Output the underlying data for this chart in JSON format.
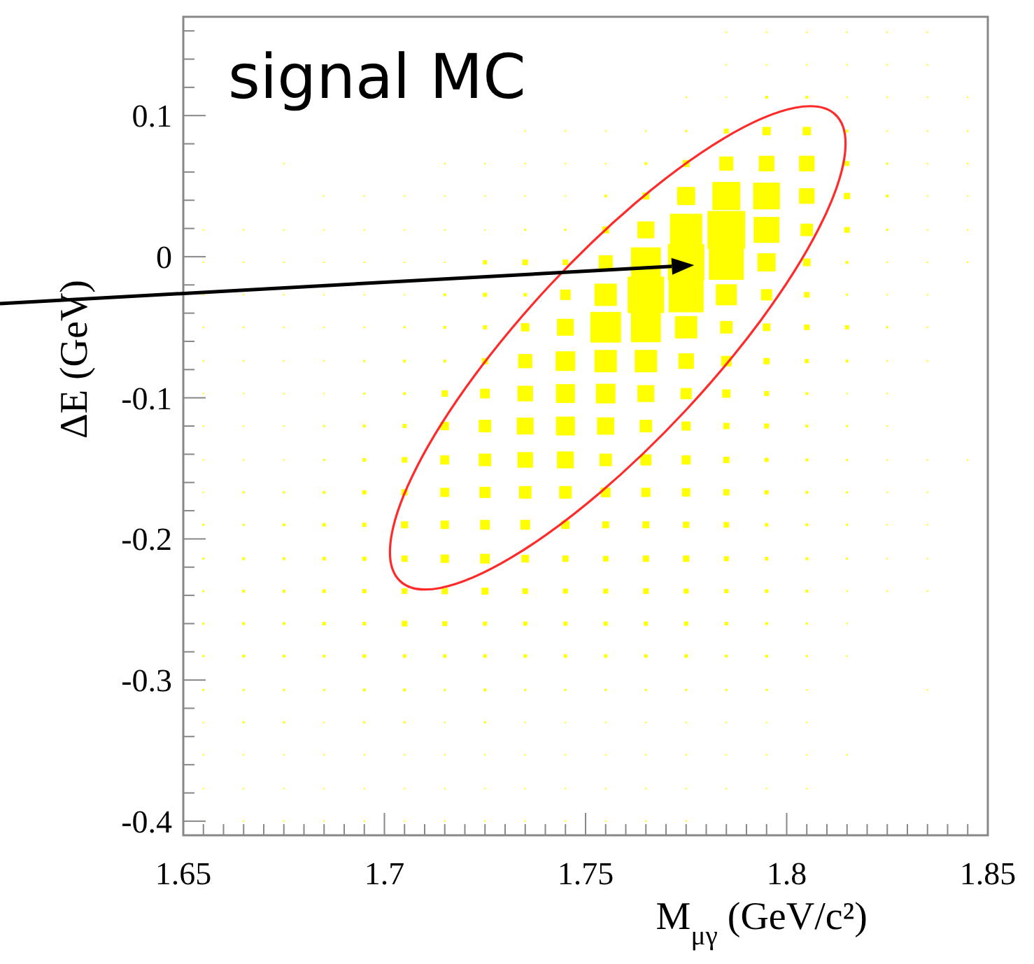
{
  "chart_data": {
    "type": "bubble",
    "marker": "square",
    "xlabel": "M$_{μγ}$ (GeV/c²)",
    "ylabel": "ΔE (GeV)",
    "annotations": [
      "signal MC"
    ],
    "xlim": [
      1.65,
      1.85
    ],
    "ylim": [
      -0.41,
      0.17
    ],
    "xticks": [
      1.65,
      {
        "value": 1.655,
        "label": null
      },
      {
        "value": 1.66,
        "label": null
      },
      {
        "value": 1.665,
        "label": null
      },
      {
        "value": 1.67,
        "label": null
      },
      {
        "value": 1.675,
        "label": null
      },
      {
        "value": 1.68,
        "label": null
      },
      {
        "value": 1.685,
        "label": null
      },
      {
        "value": 1.69,
        "label": null
      },
      {
        "value": 1.695,
        "label": null
      },
      1.7,
      {
        "value": 1.705,
        "label": null
      },
      {
        "value": 1.71,
        "label": null
      },
      {
        "value": 1.715,
        "label": null
      },
      {
        "value": 1.72,
        "label": null
      },
      {
        "value": 1.725,
        "label": null
      },
      {
        "value": 1.73,
        "label": null
      },
      {
        "value": 1.735,
        "label": null
      },
      {
        "value": 1.74,
        "label": null
      },
      {
        "value": 1.745,
        "label": null
      },
      1.75,
      {
        "value": 1.755,
        "label": null
      },
      {
        "value": 1.76,
        "label": null
      },
      {
        "value": 1.765,
        "label": null
      },
      {
        "value": 1.77,
        "label": null
      },
      {
        "value": 1.775,
        "label": null
      },
      {
        "value": 1.78,
        "label": null
      },
      {
        "value": 1.785,
        "label": null
      },
      {
        "value": 1.79,
        "label": null
      },
      {
        "value": 1.795,
        "label": null
      },
      1.8,
      {
        "value": 1.805,
        "label": null
      },
      {
        "value": 1.81,
        "label": null
      },
      {
        "value": 1.815,
        "label": null
      },
      {
        "value": 1.82,
        "label": null
      },
      {
        "value": 1.825,
        "label": null
      },
      {
        "value": 1.83,
        "label": null
      },
      {
        "value": 1.835,
        "label": null
      },
      {
        "value": 1.84,
        "label": null
      },
      {
        "value": 1.845,
        "label": null
      },
      1.85
    ],
    "yticks": [
      -0.4,
      {
        "value": -0.38,
        "label": null
      },
      {
        "value": -0.36,
        "label": null
      },
      {
        "value": -0.34,
        "label": null
      },
      {
        "value": -0.32,
        "label": null
      },
      -0.3,
      {
        "value": -0.28,
        "label": null
      },
      {
        "value": -0.26,
        "label": null
      },
      {
        "value": -0.24,
        "label": null
      },
      {
        "value": -0.22,
        "label": null
      },
      -0.2,
      {
        "value": -0.18,
        "label": null
      },
      {
        "value": -0.16,
        "label": null
      },
      {
        "value": -0.14,
        "label": null
      },
      {
        "value": -0.12,
        "label": null
      },
      -0.1,
      {
        "value": -0.08,
        "label": null
      },
      {
        "value": -0.06,
        "label": null
      },
      {
        "value": -0.04,
        "label": null
      },
      {
        "value": -0.02,
        "label": null
      },
      0,
      {
        "value": 0.02,
        "label": null
      },
      {
        "value": 0.04,
        "label": null
      },
      {
        "value": 0.06,
        "label": null
      },
      {
        "value": 0.08,
        "label": null
      },
      0.1,
      {
        "value": 0.12,
        "label": null
      },
      {
        "value": 0.14,
        "label": null
      },
      {
        "value": 0.16,
        "label": null
      }
    ],
    "x": [
      1.655,
      1.665,
      1.675,
      1.685,
      1.695,
      1.705,
      1.715,
      1.725,
      1.735,
      1.745,
      1.755,
      1.765,
      1.775,
      1.785,
      1.795,
      1.805,
      1.815,
      1.825,
      1.835,
      1.845
    ],
    "series": [
      {
        "color": "#ffff00",
        "values": [
          -0.4,
          -0.4,
          -0.4,
          -0.4,
          -0.4,
          -0.4,
          -0.4,
          -0.4,
          -0.4,
          -0.4,
          -0.4,
          -0.4,
          -0.4,
          null,
          null,
          null,
          null,
          null,
          null,
          null
        ],
        "sizes": [
          0.0014,
          0.0014,
          0.0014,
          0.0014,
          0.0014,
          0.0014,
          0.0014,
          0.0014,
          0.0014,
          0.0014,
          0.0014,
          0.0014,
          0.0014,
          null,
          null,
          null,
          null,
          null,
          null,
          null
        ]
      },
      {
        "color": "#ffff00",
        "values": [
          -0.377,
          -0.377,
          -0.377,
          -0.377,
          -0.377,
          -0.377,
          -0.377,
          -0.377,
          -0.377,
          -0.377,
          -0.377,
          -0.377,
          -0.377,
          -0.377,
          -0.377,
          -0.377,
          null,
          null,
          null,
          null
        ],
        "sizes": [
          0.0014,
          0.0014,
          0.0014,
          0.0014,
          0.0014,
          0.0014,
          0.0014,
          0.0014,
          0.0014,
          0.0014,
          0.0014,
          0.0014,
          0.0014,
          0.0014,
          0.0014,
          0.0014,
          null,
          null,
          null,
          null
        ]
      },
      {
        "color": "#ffff00",
        "values": [
          -0.353,
          -0.353,
          -0.353,
          -0.353,
          -0.353,
          -0.353,
          -0.353,
          -0.353,
          -0.353,
          -0.353,
          -0.353,
          -0.353,
          -0.353,
          -0.353,
          -0.353,
          -0.353,
          -0.353,
          null,
          null,
          null
        ],
        "sizes": [
          0.0014,
          0.0014,
          0.0014,
          0.0014,
          0.0014,
          0.0014,
          0.0014,
          0.0014,
          0.0014,
          0.0014,
          0.0014,
          0.0014,
          0.0014,
          0.0014,
          0.0014,
          0.0014,
          0.0014,
          null,
          null,
          null
        ]
      },
      {
        "color": "#ffff00",
        "values": [
          -0.33,
          -0.33,
          -0.33,
          -0.33,
          -0.33,
          -0.33,
          -0.33,
          -0.33,
          -0.33,
          -0.33,
          -0.33,
          -0.33,
          -0.33,
          -0.33,
          -0.33,
          -0.33,
          null,
          null,
          null,
          null
        ],
        "sizes": [
          0.0014,
          0.0031,
          0.0031,
          0.0014,
          0.0031,
          0.0031,
          0.0014,
          0.0031,
          0.0014,
          0.0014,
          0.0014,
          0.0014,
          0.0014,
          0.0014,
          0.0014,
          0.0014,
          null,
          null,
          null,
          null
        ]
      },
      {
        "color": "#ffff00",
        "values": [
          -0.307,
          -0.307,
          -0.307,
          -0.307,
          -0.307,
          -0.307,
          -0.307,
          -0.307,
          -0.307,
          -0.307,
          -0.307,
          -0.307,
          -0.307,
          -0.307,
          -0.307,
          -0.307,
          null,
          null,
          -0.307,
          null
        ],
        "sizes": [
          0.0031,
          0.0031,
          0.0031,
          0.0031,
          0.0055,
          0.0055,
          0.0031,
          0.0055,
          0.0031,
          0.0031,
          0.0031,
          0.0031,
          0.0031,
          0.0031,
          0.0031,
          0.0014,
          null,
          null,
          0.0014,
          null
        ]
      },
      {
        "color": "#ffff00",
        "values": [
          -0.283,
          -0.283,
          -0.283,
          -0.283,
          -0.283,
          -0.283,
          -0.283,
          -0.283,
          -0.283,
          -0.283,
          -0.283,
          -0.283,
          -0.283,
          -0.283,
          -0.283,
          -0.283,
          -0.283,
          null,
          null,
          null
        ],
        "sizes": [
          0.0031,
          0.0055,
          0.0055,
          0.0055,
          0.0086,
          0.0086,
          0.0086,
          0.0086,
          0.0086,
          0.0086,
          0.0086,
          0.0086,
          0.0086,
          0.0055,
          0.0055,
          0.0031,
          0.0014,
          null,
          null,
          null
        ]
      },
      {
        "color": "#ffff00",
        "values": [
          -0.26,
          -0.26,
          -0.26,
          -0.26,
          -0.26,
          -0.26,
          -0.26,
          -0.26,
          -0.26,
          -0.26,
          -0.26,
          -0.26,
          -0.26,
          -0.26,
          -0.26,
          -0.26,
          -0.26,
          null,
          null,
          null
        ],
        "sizes": [
          0.0031,
          0.0055,
          0.0055,
          0.0086,
          0.0086,
          0.022,
          0.017,
          0.012,
          0.012,
          0.012,
          0.012,
          0.012,
          0.012,
          0.0086,
          0.0055,
          0.0031,
          0.0014,
          null,
          null,
          null
        ]
      },
      {
        "color": "#ffff00",
        "values": [
          -0.237,
          -0.237,
          -0.237,
          -0.237,
          -0.237,
          -0.237,
          -0.237,
          -0.237,
          -0.237,
          -0.237,
          -0.237,
          -0.237,
          -0.237,
          -0.237,
          -0.237,
          -0.237,
          -0.237,
          -0.237,
          -0.237,
          null
        ],
        "sizes": [
          0.0031,
          0.0055,
          0.0055,
          0.0086,
          0.012,
          0.022,
          0.028,
          0.034,
          0.022,
          0.017,
          0.017,
          0.022,
          0.017,
          0.012,
          0.0086,
          0.0055,
          0.0014,
          0.0014,
          0.0014,
          null
        ]
      },
      {
        "color": "#ffff00",
        "values": [
          -0.214,
          -0.214,
          -0.214,
          -0.214,
          -0.214,
          -0.214,
          -0.214,
          -0.214,
          -0.214,
          -0.214,
          -0.214,
          -0.214,
          -0.214,
          -0.214,
          -0.214,
          -0.214,
          -0.214,
          -0.214,
          -0.214,
          null
        ],
        "sizes": [
          0.0031,
          0.0055,
          0.0055,
          0.0086,
          0.012,
          0.028,
          0.049,
          0.067,
          0.041,
          0.028,
          0.022,
          0.028,
          0.028,
          0.017,
          0.0086,
          0.0055,
          0.0031,
          0.0014,
          0.0014,
          null
        ]
      },
      {
        "color": "#ffff00",
        "values": [
          -0.19,
          -0.19,
          -0.19,
          -0.19,
          -0.19,
          -0.19,
          -0.19,
          -0.19,
          -0.19,
          -0.19,
          -0.19,
          -0.19,
          -0.19,
          -0.19,
          -0.19,
          -0.19,
          -0.19,
          -0.19,
          -0.19,
          null
        ],
        "sizes": [
          0.0031,
          0.0031,
          0.0055,
          0.0086,
          0.012,
          0.034,
          0.049,
          0.067,
          0.067,
          0.049,
          0.034,
          0.034,
          0.028,
          0.022,
          0.0086,
          0.0055,
          0.0031,
          0.0014,
          0.0014,
          null
        ]
      },
      {
        "color": "#ffff00",
        "values": [
          -0.167,
          -0.167,
          -0.167,
          -0.167,
          -0.167,
          -0.167,
          -0.167,
          -0.167,
          -0.167,
          -0.167,
          -0.167,
          -0.167,
          -0.167,
          -0.167,
          -0.167,
          -0.167,
          -0.167,
          -0.167,
          -0.167,
          null
        ],
        "sizes": [
          0.0014,
          0.0031,
          0.0031,
          0.0055,
          0.012,
          0.028,
          0.058,
          0.088,
          0.11,
          0.11,
          0.067,
          0.058,
          0.049,
          0.028,
          0.012,
          0.0055,
          0.0031,
          0.0014,
          0.0014,
          null
        ]
      },
      {
        "color": "#ffff00",
        "values": [
          -0.144,
          -0.144,
          -0.144,
          -0.144,
          -0.144,
          -0.144,
          -0.144,
          -0.144,
          -0.144,
          -0.144,
          -0.144,
          -0.144,
          -0.144,
          -0.144,
          -0.144,
          -0.144,
          -0.144,
          -0.144,
          -0.144,
          -0.144
        ],
        "sizes": [
          0.0014,
          0.0014,
          0.0014,
          0.0031,
          0.0086,
          0.022,
          0.058,
          0.11,
          0.17,
          0.2,
          0.11,
          0.088,
          0.058,
          0.028,
          0.012,
          0.0055,
          0.0031,
          0.0014,
          0.0014,
          0.0014
        ]
      },
      {
        "color": "#ffff00",
        "values": [
          -0.12,
          -0.12,
          -0.12,
          -0.12,
          -0.12,
          -0.12,
          -0.12,
          -0.12,
          -0.12,
          -0.12,
          -0.12,
          -0.12,
          -0.12,
          -0.12,
          -0.12,
          -0.12,
          -0.12,
          -0.12,
          null,
          null
        ],
        "sizes": [
          0.0014,
          0.0014,
          0.0014,
          0.0031,
          0.0055,
          0.012,
          0.049,
          0.11,
          0.2,
          0.25,
          0.21,
          0.11,
          0.058,
          0.028,
          0.017,
          0.0055,
          0.0031,
          0.0014,
          null,
          null
        ]
      },
      {
        "color": "#ffff00",
        "values": [
          -0.097,
          -0.097,
          -0.097,
          -0.097,
          -0.097,
          -0.097,
          -0.097,
          -0.097,
          -0.097,
          -0.097,
          -0.097,
          -0.097,
          -0.097,
          -0.097,
          -0.097,
          -0.097,
          -0.097,
          -0.097,
          null,
          null
        ],
        "sizes": [
          0.0014,
          0.0014,
          0.0014,
          0.0014,
          0.0031,
          0.0055,
          0.028,
          0.067,
          0.17,
          0.25,
          0.27,
          0.2,
          0.088,
          0.049,
          0.017,
          0.0055,
          0.0014,
          0.0014,
          null,
          null
        ]
      },
      {
        "color": "#ffff00",
        "values": [
          -0.074,
          -0.074,
          -0.074,
          -0.074,
          -0.074,
          -0.074,
          -0.074,
          -0.074,
          -0.074,
          -0.074,
          -0.074,
          -0.074,
          -0.074,
          -0.074,
          -0.074,
          -0.074,
          -0.074,
          -0.074,
          -0.074,
          null
        ],
        "sizes": [
          0.0014,
          0.0014,
          0.0014,
          0.0014,
          0.0031,
          0.0055,
          0.0055,
          0.028,
          0.14,
          0.27,
          0.35,
          0.35,
          0.17,
          0.077,
          0.028,
          0.012,
          0.0055,
          0.0014,
          0.0014,
          null
        ]
      },
      {
        "color": "#ffff00",
        "values": [
          -0.05,
          -0.05,
          -0.05,
          -0.05,
          -0.05,
          -0.05,
          -0.05,
          -0.05,
          -0.05,
          -0.05,
          -0.05,
          -0.05,
          -0.05,
          -0.05,
          -0.05,
          -0.05,
          -0.05,
          -0.05,
          -0.05,
          null
        ],
        "sizes": [
          0.0014,
          0.0014,
          0.0014,
          0.0014,
          0.0014,
          0.0031,
          0.0055,
          0.012,
          0.049,
          0.2,
          0.66,
          0.63,
          0.35,
          0.11,
          0.041,
          0.022,
          0.012,
          0.0031,
          0.0014,
          null
        ]
      },
      {
        "color": "#ffff00",
        "values": [
          -0.027,
          -0.027,
          -0.027,
          -0.027,
          -0.027,
          -0.027,
          -0.027,
          -0.027,
          -0.027,
          -0.027,
          -0.027,
          -0.027,
          -0.027,
          -0.027,
          -0.027,
          -0.027,
          -0.027,
          -0.027,
          -0.027,
          null
        ],
        "sizes": [
          0.0014,
          0.0014,
          0.0014,
          0.0014,
          0.0014,
          0.0014,
          0.0055,
          0.012,
          0.0086,
          0.077,
          0.35,
          0.93,
          0.86,
          0.31,
          0.088,
          0.022,
          0.0031,
          0.0014,
          0.0014,
          null
        ]
      },
      {
        "color": "#ffff00",
        "values": [
          -0.004,
          -0.004,
          -0.004,
          -0.004,
          -0.004,
          -0.004,
          -0.004,
          -0.004,
          -0.004,
          -0.004,
          -0.004,
          -0.004,
          -0.004,
          -0.004,
          -0.004,
          -0.004,
          -0.004,
          -0.004,
          -0.004,
          -0.004
        ],
        "sizes": [
          0.0014,
          0.0014,
          0.0014,
          0.0014,
          0.0014,
          0.0014,
          0.0014,
          0.012,
          0.022,
          0.022,
          0.14,
          0.63,
          0.93,
          0.86,
          0.23,
          0.041,
          0.0055,
          0.0014,
          0.0014,
          0.0014
        ]
      },
      {
        "color": "#ffff00",
        "values": [
          0.019,
          0.019,
          0.019,
          0.019,
          0.019,
          0.019,
          0.019,
          0.019,
          0.019,
          0.019,
          0.019,
          0.019,
          0.019,
          0.019,
          0.019,
          0.019,
          0.019,
          0.019,
          0.019,
          0.019
        ],
        "sizes": [
          0.0014,
          0.0014,
          0.0014,
          0.0014,
          0.0014,
          0.0014,
          0.0014,
          0.0014,
          0.0031,
          0.0031,
          0.034,
          0.2,
          0.73,
          1,
          0.47,
          0.11,
          0.022,
          0.0031,
          0.0014,
          0.0014
        ]
      },
      {
        "color": "#ffff00",
        "values": [
          null,
          null,
          null,
          0.043,
          0.043,
          0.043,
          0.043,
          0.043,
          0.043,
          0.043,
          0.043,
          0.043,
          0.043,
          0.043,
          0.043,
          0.043,
          0.043,
          0.043,
          0.043,
          0.043
        ],
        "sizes": [
          null,
          null,
          null,
          0.0014,
          0.0014,
          0.0014,
          0.0014,
          0.0014,
          0.0014,
          0.0014,
          0.0055,
          0.034,
          0.23,
          0.55,
          0.5,
          0.17,
          0.028,
          0.0055,
          0.0014,
          0.0014
        ]
      },
      {
        "color": "#ffff00",
        "values": [
          null,
          null,
          0.066,
          null,
          null,
          null,
          0.066,
          0.066,
          0.066,
          0.066,
          0.066,
          0.066,
          0.066,
          0.066,
          0.066,
          0.066,
          0.066,
          0.066,
          0.066,
          0.066
        ],
        "sizes": [
          null,
          null,
          0.0014,
          null,
          null,
          null,
          0.0014,
          0.0014,
          0.0014,
          0.0014,
          0.0014,
          0.0055,
          0.034,
          0.14,
          0.17,
          0.17,
          0.017,
          0.0031,
          0.0014,
          0.0014
        ]
      },
      {
        "color": "#ffff00",
        "values": [
          null,
          null,
          null,
          null,
          null,
          null,
          null,
          null,
          0.089,
          0.089,
          0.089,
          0.089,
          0.089,
          0.089,
          0.089,
          0.089,
          0.089,
          0.089,
          0.089,
          0.089
        ],
        "sizes": [
          null,
          null,
          null,
          null,
          null,
          null,
          null,
          null,
          0.0014,
          0.0014,
          0.0014,
          0.0014,
          0.0031,
          0.017,
          0.049,
          0.049,
          0.0055,
          0.0014,
          0.0014,
          0.0014
        ]
      },
      {
        "color": "#ffff00",
        "values": [
          null,
          null,
          null,
          null,
          null,
          null,
          null,
          null,
          null,
          null,
          null,
          null,
          0.113,
          0.113,
          0.113,
          0.113,
          0.113,
          0.113,
          0.113,
          0.113
        ],
        "sizes": [
          null,
          null,
          null,
          null,
          null,
          null,
          null,
          null,
          null,
          null,
          null,
          null,
          0.0014,
          0.0014,
          0.0055,
          0.0055,
          0.0014,
          0.0014,
          0.0014,
          0.0014
        ]
      },
      {
        "color": "#ffff00",
        "values": [
          null,
          null,
          null,
          null,
          null,
          null,
          null,
          null,
          null,
          null,
          null,
          null,
          null,
          0.136,
          0.136,
          0.136,
          0.136,
          0.136,
          0.136,
          null
        ],
        "sizes": [
          null,
          null,
          null,
          null,
          null,
          null,
          null,
          null,
          null,
          null,
          null,
          null,
          null,
          0.0014,
          0.0014,
          0.0014,
          0.0014,
          0.0014,
          0.0014,
          null
        ]
      },
      {
        "color": "#ffff00",
        "values": [
          null,
          null,
          null,
          null,
          null,
          null,
          null,
          null,
          null,
          null,
          null,
          null,
          null,
          0.159,
          0.159,
          0.159,
          0.159,
          0.159,
          0.159,
          null
        ],
        "sizes": [
          null,
          null,
          null,
          null,
          null,
          null,
          null,
          null,
          null,
          null,
          null,
          null,
          null,
          0.0014,
          0.0014,
          0.0014,
          0.0014,
          0.0014,
          0.0014,
          null
        ]
      }
    ]
  }
}
